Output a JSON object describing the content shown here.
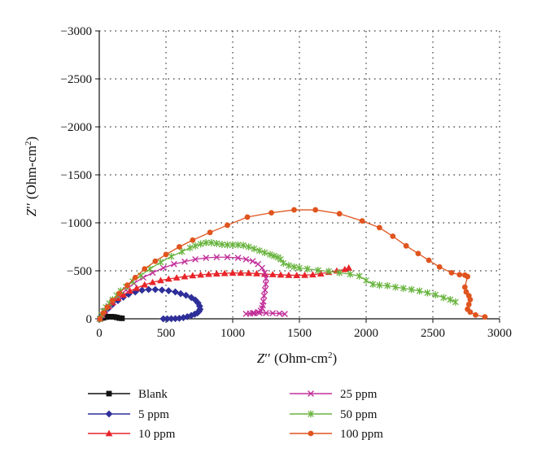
{
  "chart_data": {
    "type": "scatter",
    "xlabel_main": "Z",
    "xlabel_prime": "′′",
    "xlabel_unit": " (Ohm-cm",
    "xlabel_sup": "2",
    "xlabel_close": ")",
    "ylabel_main": "Z",
    "ylabel_prime": "′′",
    "ylabel_unit": " (Ohm-cm",
    "ylabel_sup": "2",
    "ylabel_close": ")",
    "xlim": [
      0,
      3000
    ],
    "ylim": [
      0,
      -3000
    ],
    "x_ticks": [
      "0",
      "500",
      "1000",
      "1500",
      "2000",
      "2500",
      "3000"
    ],
    "y_ticks": [
      "0",
      "−500",
      "−1000",
      "−1500",
      "−2000",
      "−2500",
      "−3000"
    ],
    "grid": "dotted",
    "legend_position": "bottom",
    "series": [
      {
        "name": "Blank",
        "color": "#111111",
        "marker": "square",
        "points": [
          [
            10,
            0
          ],
          [
            30,
            -10
          ],
          [
            50,
            -18
          ],
          [
            70,
            -22
          ],
          [
            90,
            -22
          ],
          [
            110,
            -20
          ],
          [
            130,
            -15
          ],
          [
            150,
            -8
          ],
          [
            170,
            -5
          ]
        ]
      },
      {
        "name": "5 ppm",
        "color": "#2e2f99",
        "marker": "diamond",
        "points": [
          [
            5,
            0
          ],
          [
            20,
            -30
          ],
          [
            40,
            -70
          ],
          [
            70,
            -110
          ],
          [
            100,
            -150
          ],
          [
            140,
            -190
          ],
          [
            180,
            -225
          ],
          [
            220,
            -255
          ],
          [
            270,
            -280
          ],
          [
            320,
            -298
          ],
          [
            370,
            -305
          ],
          [
            420,
            -305
          ],
          [
            470,
            -300
          ],
          [
            520,
            -292
          ],
          [
            570,
            -280
          ],
          [
            610,
            -262
          ],
          [
            650,
            -245
          ],
          [
            690,
            -222
          ],
          [
            720,
            -196
          ],
          [
            740,
            -165
          ],
          [
            752,
            -132
          ],
          [
            755,
            -100
          ],
          [
            748,
            -78
          ],
          [
            735,
            -62
          ],
          [
            715,
            -48
          ],
          [
            690,
            -35
          ],
          [
            660,
            -22
          ],
          [
            630,
            -12
          ],
          [
            600,
            -5
          ],
          [
            570,
            -2
          ],
          [
            540,
            -1
          ],
          [
            510,
            0
          ],
          [
            480,
            0
          ]
        ]
      },
      {
        "name": "10 ppm",
        "color": "#e8252a",
        "marker": "triangle",
        "points": [
          [
            5,
            0
          ],
          [
            20,
            -40
          ],
          [
            40,
            -80
          ],
          [
            70,
            -130
          ],
          [
            100,
            -170
          ],
          [
            140,
            -215
          ],
          [
            180,
            -250
          ],
          [
            230,
            -290
          ],
          [
            280,
            -320
          ],
          [
            340,
            -355
          ],
          [
            400,
            -380
          ],
          [
            460,
            -400
          ],
          [
            520,
            -415
          ],
          [
            580,
            -428
          ],
          [
            640,
            -440
          ],
          [
            700,
            -450
          ],
          [
            760,
            -458
          ],
          [
            820,
            -465
          ],
          [
            880,
            -470
          ],
          [
            940,
            -474
          ],
          [
            1000,
            -477
          ],
          [
            1060,
            -478
          ],
          [
            1120,
            -476
          ],
          [
            1180,
            -472
          ],
          [
            1240,
            -466
          ],
          [
            1300,
            -462
          ],
          [
            1360,
            -458
          ],
          [
            1420,
            -455
          ],
          [
            1480,
            -453
          ],
          [
            1540,
            -455
          ],
          [
            1600,
            -460
          ],
          [
            1660,
            -470
          ],
          [
            1720,
            -485
          ],
          [
            1780,
            -500
          ],
          [
            1840,
            -515
          ],
          [
            1870,
            -530
          ]
        ]
      },
      {
        "name": "25 ppm",
        "color": "#c2309a",
        "marker": "x",
        "points": [
          [
            5,
            0
          ],
          [
            20,
            -40
          ],
          [
            40,
            -80
          ],
          [
            70,
            -130
          ],
          [
            100,
            -180
          ],
          [
            150,
            -240
          ],
          [
            200,
            -300
          ],
          [
            260,
            -370
          ],
          [
            330,
            -430
          ],
          [
            400,
            -480
          ],
          [
            480,
            -530
          ],
          [
            560,
            -570
          ],
          [
            640,
            -595
          ],
          [
            720,
            -620
          ],
          [
            800,
            -635
          ],
          [
            880,
            -642
          ],
          [
            960,
            -642
          ],
          [
            1040,
            -635
          ],
          [
            1100,
            -620
          ],
          [
            1150,
            -600
          ],
          [
            1190,
            -570
          ],
          [
            1220,
            -530
          ],
          [
            1240,
            -480
          ],
          [
            1250,
            -420
          ],
          [
            1248,
            -360
          ],
          [
            1242,
            -300
          ],
          [
            1235,
            -240
          ],
          [
            1230,
            -180
          ],
          [
            1225,
            -140
          ],
          [
            1220,
            -110
          ],
          [
            1210,
            -85
          ],
          [
            1190,
            -70
          ],
          [
            1160,
            -60
          ],
          [
            1130,
            -55
          ],
          [
            1100,
            -52
          ],
          [
            1150,
            -58
          ],
          [
            1200,
            -62
          ],
          [
            1250,
            -60
          ],
          [
            1300,
            -58
          ],
          [
            1350,
            -55
          ],
          [
            1390,
            -50
          ]
        ]
      },
      {
        "name": "50 ppm",
        "color": "#69b43f",
        "marker": "star",
        "points": [
          [
            5,
            0
          ],
          [
            15,
            -40
          ],
          [
            30,
            -80
          ],
          [
            50,
            -120
          ],
          [
            75,
            -160
          ],
          [
            100,
            -200
          ],
          [
            130,
            -245
          ],
          [
            160,
            -290
          ],
          [
            200,
            -335
          ],
          [
            250,
            -390
          ],
          [
            310,
            -450
          ],
          [
            380,
            -520
          ],
          [
            460,
            -590
          ],
          [
            540,
            -650
          ],
          [
            620,
            -700
          ],
          [
            680,
            -740
          ],
          [
            720,
            -760
          ],
          [
            760,
            -780
          ],
          [
            800,
            -793
          ],
          [
            840,
            -793
          ],
          [
            880,
            -785
          ],
          [
            920,
            -775
          ],
          [
            960,
            -770
          ],
          [
            1000,
            -770
          ],
          [
            1040,
            -770
          ],
          [
            1080,
            -765
          ],
          [
            1120,
            -750
          ],
          [
            1160,
            -730
          ],
          [
            1200,
            -710
          ],
          [
            1240,
            -690
          ],
          [
            1280,
            -670
          ],
          [
            1310,
            -655
          ],
          [
            1340,
            -640
          ],
          [
            1360,
            -620
          ],
          [
            1380,
            -580
          ],
          [
            1420,
            -555
          ],
          [
            1460,
            -540
          ],
          [
            1500,
            -530
          ],
          [
            1560,
            -520
          ],
          [
            1640,
            -505
          ],
          [
            1720,
            -495
          ],
          [
            1800,
            -480
          ],
          [
            1880,
            -465
          ],
          [
            1950,
            -445
          ],
          [
            2000,
            -400
          ],
          [
            2050,
            -360
          ],
          [
            2100,
            -350
          ],
          [
            2160,
            -345
          ],
          [
            2220,
            -330
          ],
          [
            2280,
            -318
          ],
          [
            2340,
            -305
          ],
          [
            2400,
            -290
          ],
          [
            2460,
            -270
          ],
          [
            2520,
            -250
          ],
          [
            2580,
            -220
          ],
          [
            2630,
            -200
          ],
          [
            2670,
            -175
          ]
        ]
      },
      {
        "name": "100 ppm",
        "color": "#e0541e",
        "marker": "circle",
        "points": [
          [
            5,
            0
          ],
          [
            30,
            -60
          ],
          [
            60,
            -120
          ],
          [
            100,
            -190
          ],
          [
            150,
            -265
          ],
          [
            210,
            -350
          ],
          [
            270,
            -430
          ],
          [
            340,
            -520
          ],
          [
            420,
            -600
          ],
          [
            500,
            -670
          ],
          [
            600,
            -750
          ],
          [
            700,
            -820
          ],
          [
            830,
            -900
          ],
          [
            960,
            -975
          ],
          [
            1110,
            -1060
          ],
          [
            1290,
            -1105
          ],
          [
            1460,
            -1135
          ],
          [
            1620,
            -1135
          ],
          [
            1800,
            -1095
          ],
          [
            1970,
            -1020
          ],
          [
            2100,
            -950
          ],
          [
            2200,
            -860
          ],
          [
            2300,
            -760
          ],
          [
            2390,
            -680
          ],
          [
            2470,
            -610
          ],
          [
            2550,
            -540
          ],
          [
            2640,
            -480
          ],
          [
            2700,
            -460
          ],
          [
            2740,
            -455
          ],
          [
            2760,
            -440
          ],
          [
            2740,
            -330
          ],
          [
            2750,
            -280
          ],
          [
            2770,
            -240
          ],
          [
            2780,
            -200
          ],
          [
            2770,
            -150
          ],
          [
            2760,
            -100
          ],
          [
            2780,
            -70
          ],
          [
            2820,
            -40
          ],
          [
            2890,
            -20
          ]
        ]
      }
    ]
  }
}
